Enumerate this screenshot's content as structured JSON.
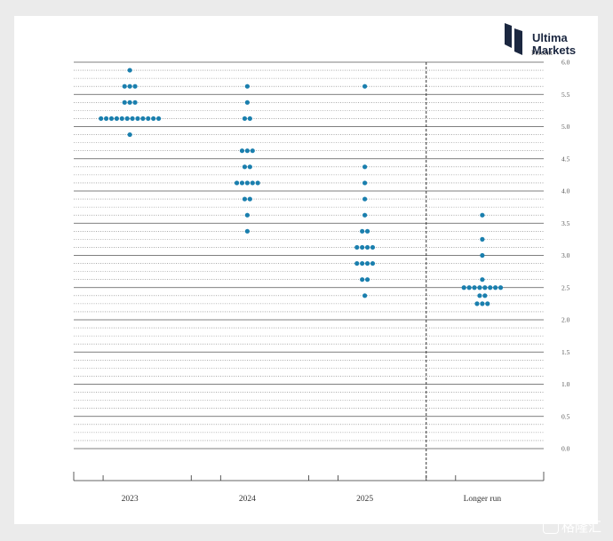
{
  "brand": {
    "line1": "Ultima",
    "line2": "Markets",
    "color": "#1b2740"
  },
  "watermark": {
    "icon": "tiger-logo-icon",
    "text": "格隆汇"
  },
  "chart_data": {
    "type": "scatter",
    "ylabel": "Percent",
    "ylim": [
      0,
      6
    ],
    "yticks": [
      "0.0",
      "0.5",
      "1.0",
      "1.5",
      "2.0",
      "2.5",
      "3.0",
      "3.5",
      "4.0",
      "4.5",
      "5.0",
      "5.5",
      "6.0"
    ],
    "categories": [
      "2023",
      "2024",
      "2025",
      "Longer run"
    ],
    "dot_color": "#1a7fae",
    "grid": "major solid every 0.5, dotted minor every 0.125",
    "separator_before": "Longer run",
    "series": [
      {
        "category": "2023",
        "points": [
          {
            "y": 5.875,
            "count": 1
          },
          {
            "y": 5.625,
            "count": 3
          },
          {
            "y": 5.375,
            "count": 3
          },
          {
            "y": 5.125,
            "count": 12
          },
          {
            "y": 4.875,
            "count": 1
          }
        ]
      },
      {
        "category": "2024",
        "points": [
          {
            "y": 5.625,
            "count": 1
          },
          {
            "y": 5.375,
            "count": 1
          },
          {
            "y": 5.125,
            "count": 2
          },
          {
            "y": 4.625,
            "count": 3
          },
          {
            "y": 4.375,
            "count": 2
          },
          {
            "y": 4.125,
            "count": 5
          },
          {
            "y": 3.875,
            "count": 2
          },
          {
            "y": 3.625,
            "count": 1
          },
          {
            "y": 3.375,
            "count": 1
          }
        ]
      },
      {
        "category": "2025",
        "points": [
          {
            "y": 5.625,
            "count": 1
          },
          {
            "y": 4.375,
            "count": 1
          },
          {
            "y": 4.125,
            "count": 1
          },
          {
            "y": 3.875,
            "count": 1
          },
          {
            "y": 3.625,
            "count": 1
          },
          {
            "y": 3.375,
            "count": 2
          },
          {
            "y": 3.125,
            "count": 4
          },
          {
            "y": 2.875,
            "count": 4
          },
          {
            "y": 2.625,
            "count": 2
          },
          {
            "y": 2.375,
            "count": 1
          }
        ]
      },
      {
        "category": "Longer run",
        "points": [
          {
            "y": 3.625,
            "count": 1
          },
          {
            "y": 3.25,
            "count": 1
          },
          {
            "y": 3.0,
            "count": 1
          },
          {
            "y": 2.625,
            "count": 1
          },
          {
            "y": 2.5,
            "count": 8
          },
          {
            "y": 2.375,
            "count": 2
          },
          {
            "y": 2.25,
            "count": 3
          }
        ]
      }
    ]
  }
}
